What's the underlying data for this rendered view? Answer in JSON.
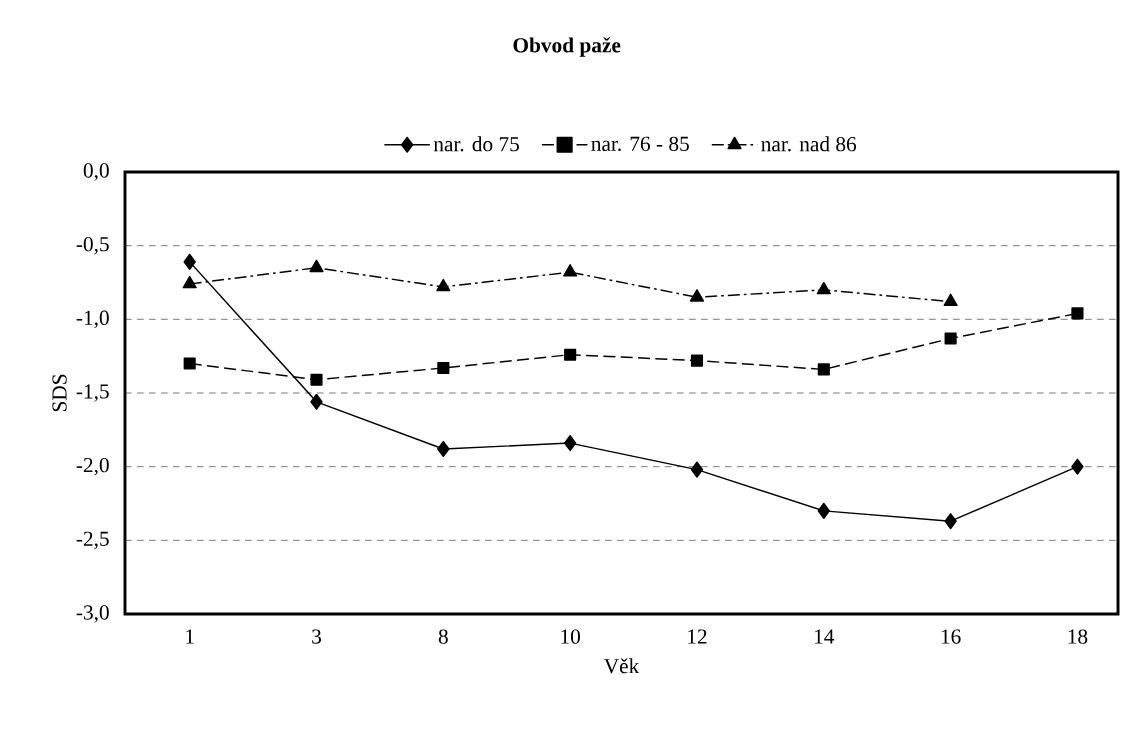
{
  "chart_data": {
    "type": "line",
    "title": "Obvod paže",
    "xlabel": "Věk",
    "ylabel": "SDS",
    "categories": [
      "1",
      "3",
      "8",
      "10",
      "12",
      "14",
      "16",
      "18"
    ],
    "series": [
      {
        "name": "nar. do 75",
        "color": "#000000",
        "marker": "diamond",
        "line_style": "solid",
        "values": [
          -0.61,
          -1.56,
          -1.88,
          -1.84,
          -2.02,
          -2.3,
          -2.37,
          -2.0
        ]
      },
      {
        "name": "nar. 76 - 85",
        "color": "#000000",
        "marker": "square",
        "line_style": "dashed",
        "values": [
          -1.3,
          -1.41,
          -1.33,
          -1.24,
          -1.28,
          -1.34,
          -1.13,
          -0.96
        ]
      },
      {
        "name": "nar. nad 86",
        "color": "#000000",
        "marker": "triangle",
        "line_style": "dashdot",
        "values": [
          -0.76,
          -0.65,
          -0.78,
          -0.68,
          -0.85,
          -0.8,
          -0.88,
          null
        ]
      }
    ],
    "ylim": [
      -3,
      0
    ],
    "yticks": [
      {
        "value": -3,
        "label": "-3,0"
      },
      {
        "value": -2.5,
        "label": "-2,5"
      },
      {
        "value": -2,
        "label": "-2,0"
      },
      {
        "value": -1.5,
        "label": "-1,5"
      },
      {
        "value": -1,
        "label": "-1,0"
      },
      {
        "value": -0.5,
        "label": "-0,5"
      },
      {
        "value": 0,
        "label": "0,0"
      }
    ],
    "grid": "y",
    "legend": "top"
  }
}
